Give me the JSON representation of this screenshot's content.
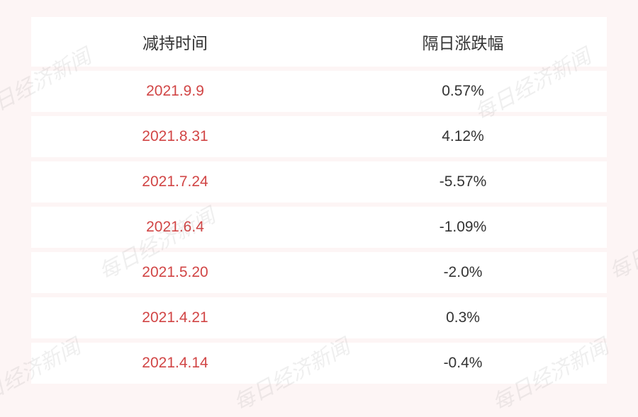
{
  "table": {
    "type": "table",
    "background_color": "#fdf5f5",
    "row_background": "#ffffff",
    "text_color": "#333333",
    "date_color": "#d14545",
    "header_fontsize": 23,
    "cell_fontsize": 21,
    "columns": [
      "减持时间",
      "隔日涨跌幅"
    ],
    "rows": [
      {
        "date": "2021.9.9",
        "change": "0.57%"
      },
      {
        "date": "2021.8.31",
        "change": "4.12%"
      },
      {
        "date": "2021.7.24",
        "change": "-5.57%"
      },
      {
        "date": "2021.6.4",
        "change": "-1.09%"
      },
      {
        "date": "2021.5.20",
        "change": "-2.0%"
      },
      {
        "date": "2021.4.21",
        "change": "0.3%"
      },
      {
        "date": "2021.4.14",
        "change": "-0.4%"
      }
    ]
  },
  "watermark": {
    "text": "每日经济新闻",
    "color": "rgba(120,120,120,0.12)"
  }
}
